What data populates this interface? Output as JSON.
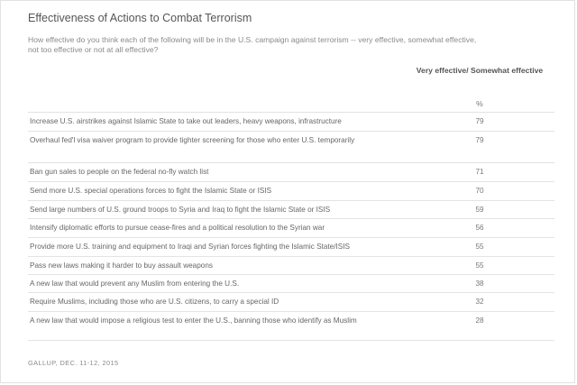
{
  "title": "Effectiveness of Actions to Combat Terrorism",
  "subtitle": "How effective do you think each of the following will be in the U.S. campaign against terrorism -- very effective, somewhat effective, not too effective or not at all effective?",
  "column_header": "Very effective/ Somewhat effective",
  "percent_header": "%",
  "rows": [
    {
      "label": "Increase U.S. airstrikes against Islamic State to take out leaders, heavy weapons, infrastructure",
      "value": "79"
    },
    {
      "label": "Overhaul fed'l visa waiver program to provide tighter screening for those who enter U.S. temporarily",
      "value": "79"
    },
    {
      "label": "Ban gun sales to people on the federal no-fly watch list",
      "value": "71"
    },
    {
      "label": "Send more U.S. special operations forces to fight the Islamic State or ISIS",
      "value": "70"
    },
    {
      "label": "Send large numbers of U.S. ground troops to Syria and Iraq to fight the Islamic State or ISIS",
      "value": "59"
    },
    {
      "label": "Intensify diplomatic efforts to pursue cease-fires and a political resolution to the Syrian war",
      "value": "56"
    },
    {
      "label": "Provide more U.S. training and equipment to Iraqi and Syrian forces fighting the Islamic State/ISIS",
      "value": "55"
    },
    {
      "label": "Pass new laws making it harder to buy assault weapons",
      "value": "55"
    },
    {
      "label": "A new law that would prevent any Muslim from entering the U.S.",
      "value": "38"
    },
    {
      "label": "Require Muslims, including those who are U.S. citizens, to carry a special ID",
      "value": "32"
    },
    {
      "label": "A new law that would impose a religious test to enter the U.S., banning those who identify as Muslim",
      "value": "28"
    }
  ],
  "source": "GALLUP, DEC. 11-12, 2015"
}
